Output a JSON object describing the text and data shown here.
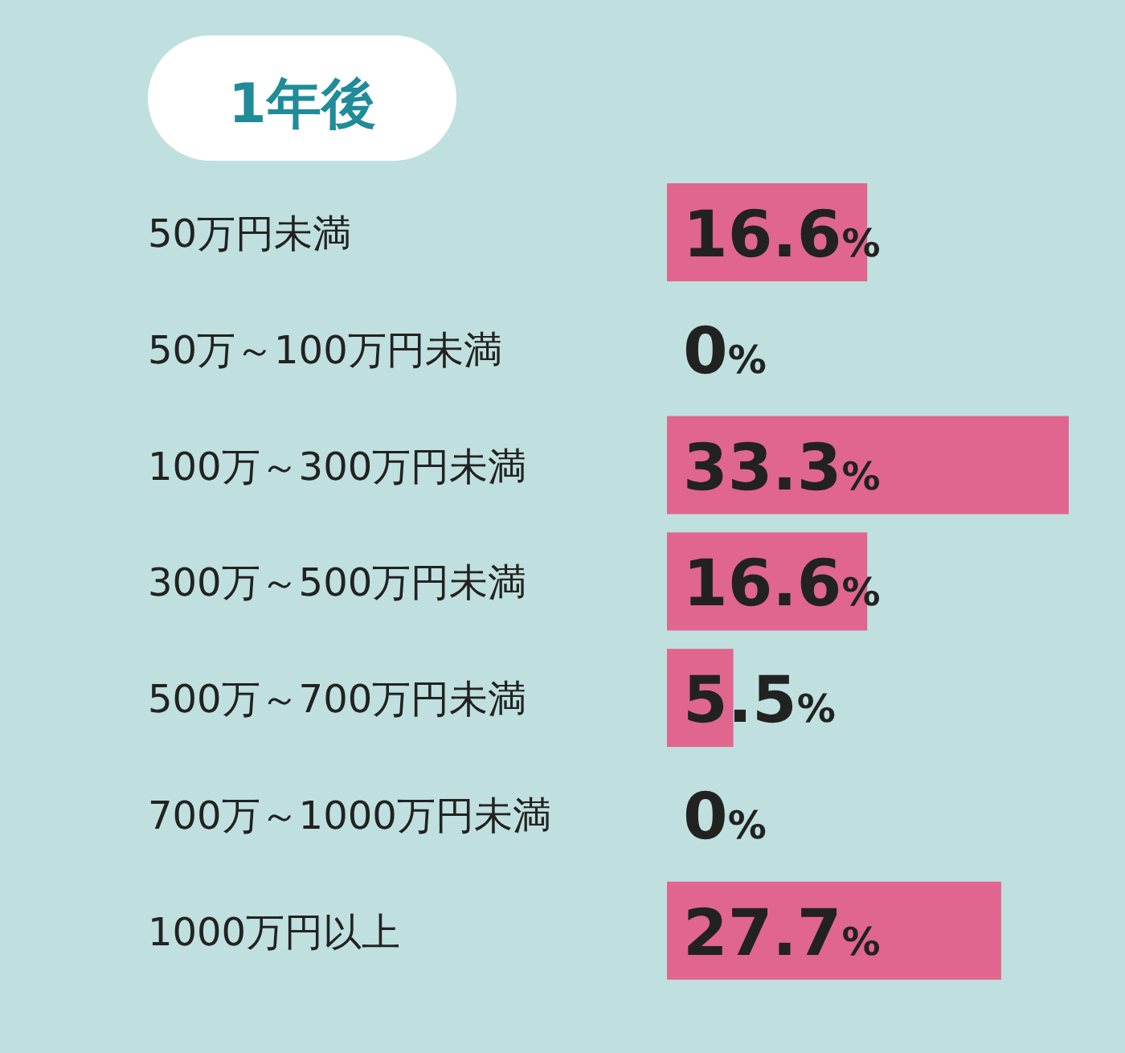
{
  "chart_data": {
    "type": "bar",
    "orientation": "horizontal",
    "title": "1年後",
    "categories": [
      "50万円未満",
      "50万～100万円未満",
      "100万～300万円未満",
      "300万～500万円未満",
      "500万～700万円未満",
      "700万～1000万円未満",
      "1000万円以上"
    ],
    "values": [
      16.6,
      0,
      33.3,
      16.6,
      5.5,
      0,
      27.7
    ],
    "value_labels": [
      "16.6%",
      "0%",
      "33.3%",
      "16.6%",
      "5.5%",
      "0%",
      "27.7%"
    ],
    "color": "#e0668f"
  }
}
